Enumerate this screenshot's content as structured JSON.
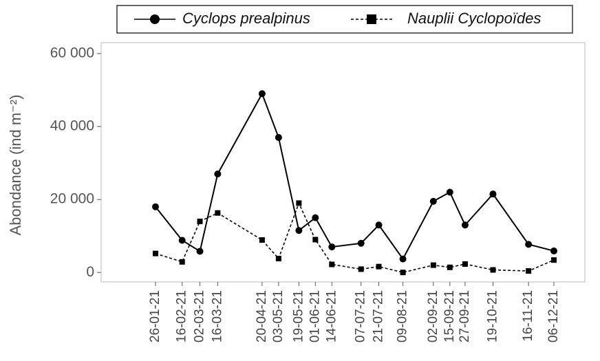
{
  "chart_data": {
    "type": "line",
    "y_label": "Abondance (ind m⁻²)",
    "x": [
      "26-01-21",
      "16-02-21",
      "02-03-21",
      "16-03-21",
      "20-04-21",
      "03-05-21",
      "19-05-21",
      "01-06-21",
      "14-06-21",
      "07-07-21",
      "21-07-21",
      "09-08-21",
      "02-09-21",
      "15-09-21",
      "27-09-21",
      "19-10-21",
      "16-11-21",
      "06-12-21"
    ],
    "series": [
      {
        "name": "Cyclops prealpinus",
        "color": "#000000",
        "marker": "circle",
        "dash": false,
        "values": [
          18000,
          8800,
          5800,
          27000,
          49000,
          37000,
          11500,
          15000,
          7000,
          8000,
          13000,
          3700,
          19500,
          22000,
          13000,
          21500,
          7700,
          5900
        ]
      },
      {
        "name": "Nauplii Cyclopoïdes",
        "color": "#000000",
        "marker": "square",
        "dash": true,
        "values": [
          5200,
          2900,
          14000,
          16300,
          8900,
          3800,
          19000,
          9000,
          2200,
          900,
          1600,
          0,
          2000,
          1400,
          2300,
          700,
          400,
          3400
        ]
      }
    ],
    "ylim": [
      -2600,
      63000
    ],
    "yticks": [
      0,
      {
        "value": 20000,
        "label": "20 000"
      },
      {
        "value": 40000,
        "label": "40 000"
      },
      {
        "value": 60000,
        "label": "60 000"
      }
    ],
    "grid": false,
    "legend": "top"
  }
}
